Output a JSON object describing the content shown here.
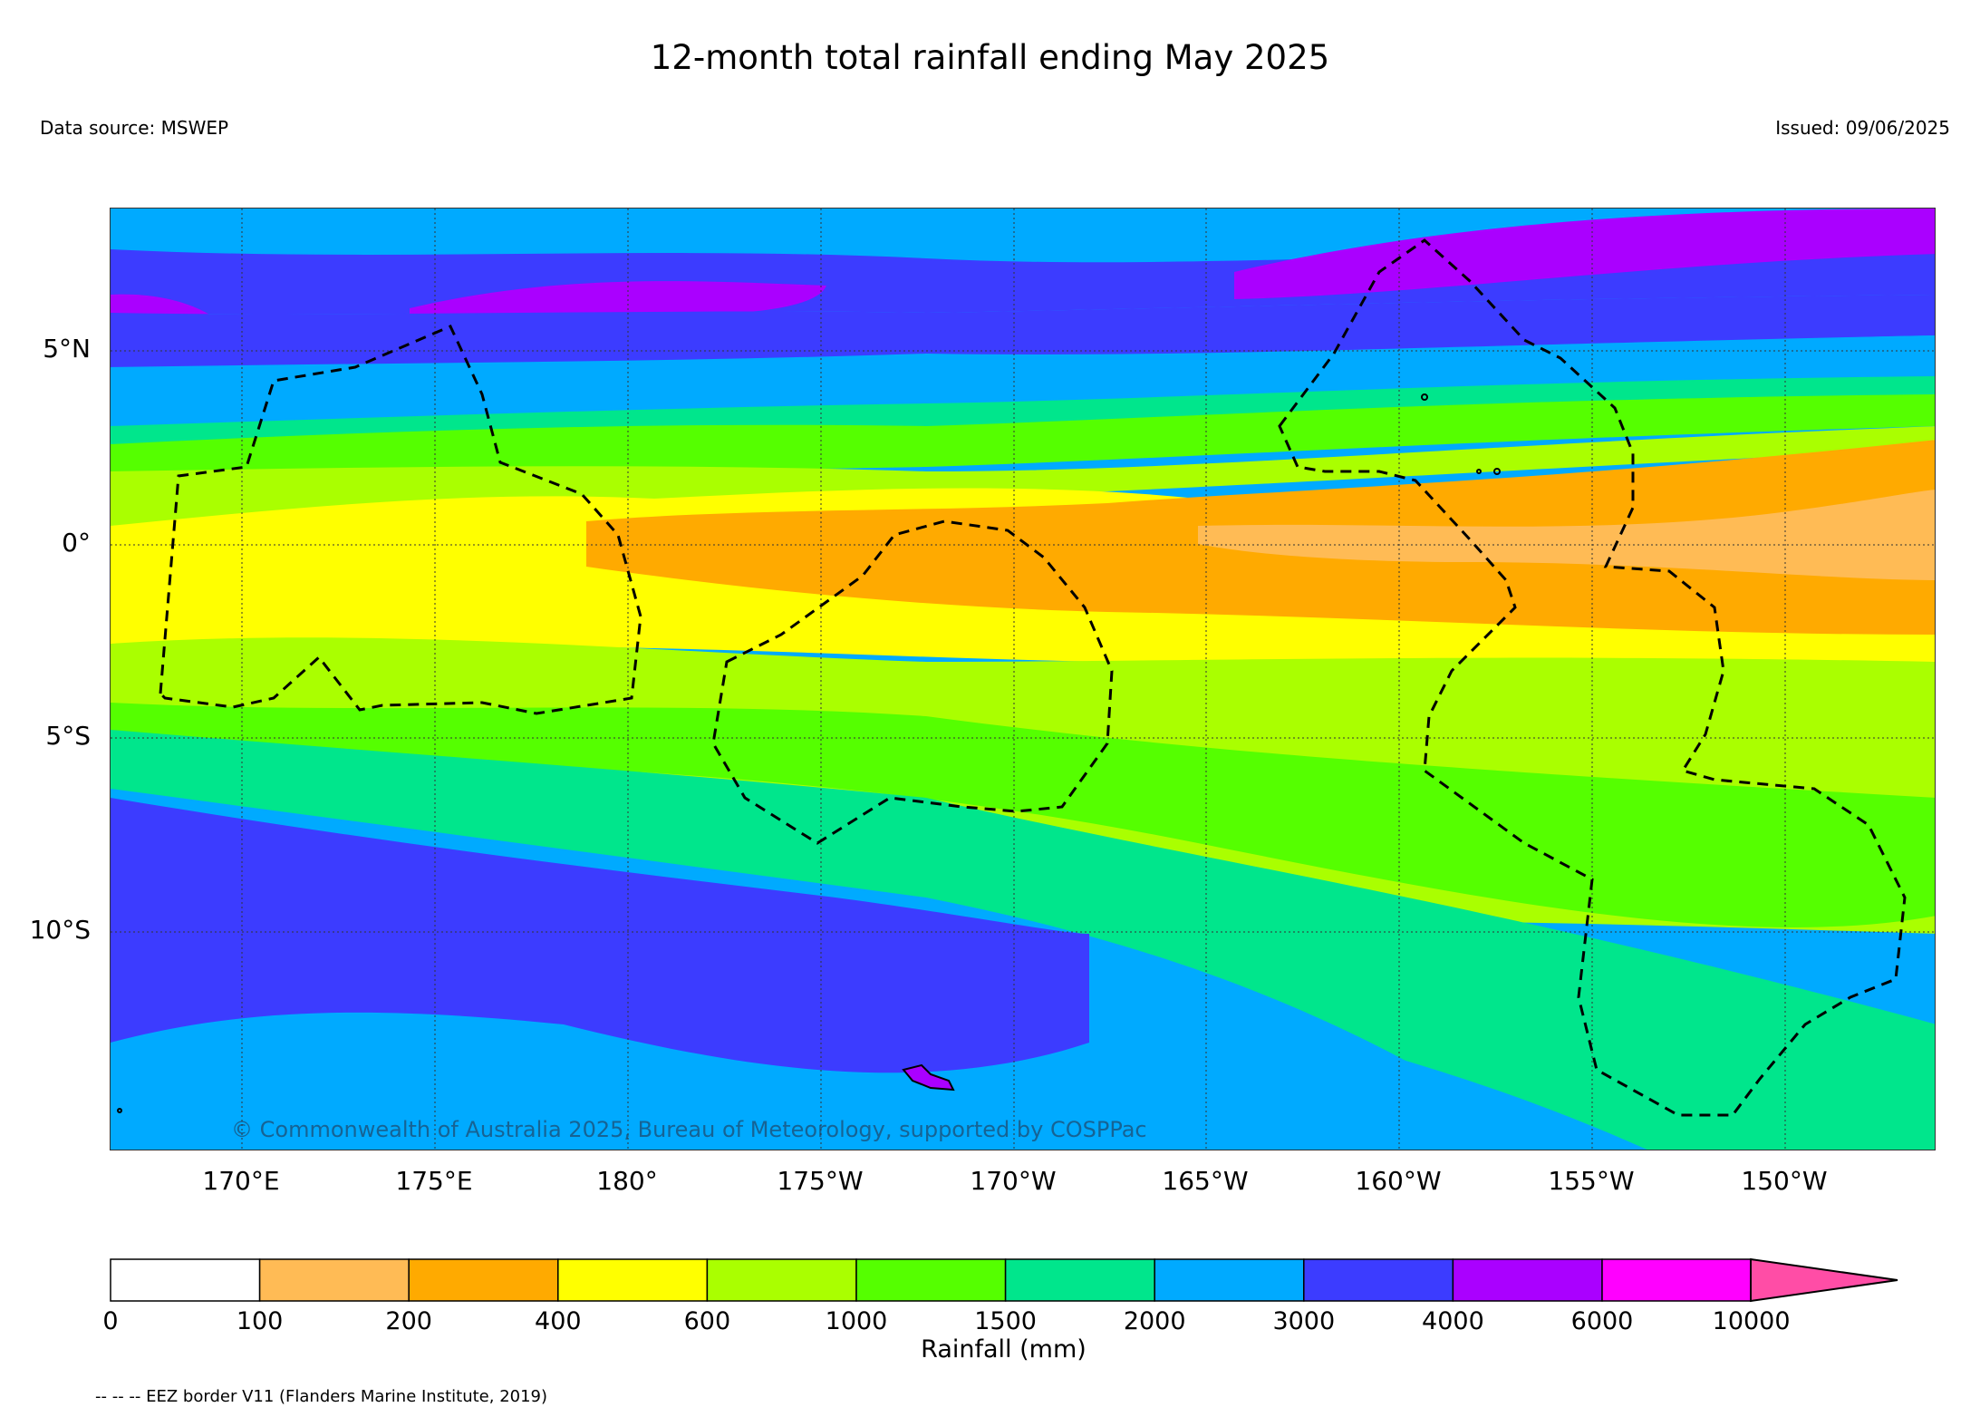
{
  "title": "12-month total rainfall ending May 2025",
  "data_source": "Data source: MSWEP",
  "issued": "Issued: 09/06/2025",
  "copyright": "© Commonwealth of Australia 2025, Bureau of Meteorology, supported by COSPPac",
  "lat_labels": [
    "5°N",
    "0°",
    "5°S",
    "10°S"
  ],
  "lon_labels": [
    "170°E",
    "175°E",
    "180°",
    "175°W",
    "170°W",
    "165°W",
    "160°W",
    "155°W",
    "150°W"
  ],
  "colorbar": {
    "label": "Rainfall (mm)",
    "ticks": [
      "0",
      "100",
      "200",
      "400",
      "600",
      "1000",
      "1500",
      "2000",
      "3000",
      "4000",
      "6000",
      "10000"
    ],
    "colors": [
      "#ffffff",
      "#ffbb55",
      "#ffaa00",
      "#ffff00",
      "#aaff00",
      "#55ff00",
      "#00e68c",
      "#00aaff",
      "#3c3cff",
      "#aa00ff",
      "#ff00ff",
      "#ff4da6"
    ]
  },
  "eez_note": "-- -- -- EEZ border V11 (Flanders Marine Institute, 2019)",
  "map_colors": {
    "land_outline": "#000000",
    "eez_border": "#000000",
    "gridline": "#333333"
  }
}
